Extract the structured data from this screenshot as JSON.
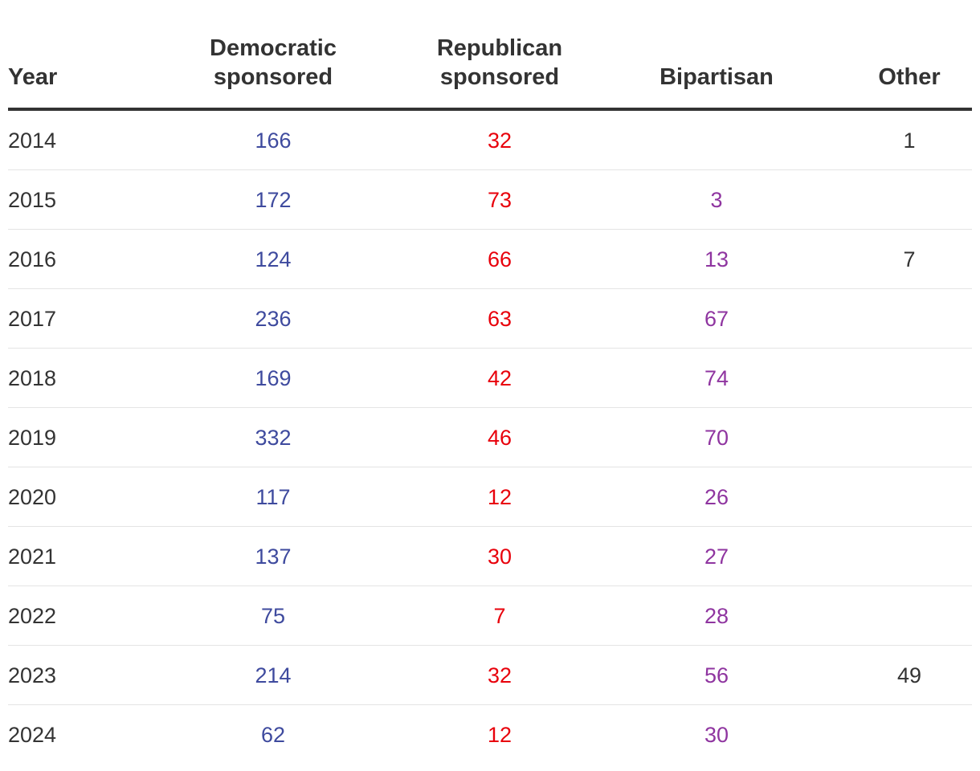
{
  "chart_data": {
    "type": "table",
    "columns": [
      "Year",
      "Democratic\nsponsored",
      "Republican\nsponsored",
      "Bipartisan",
      "Other"
    ],
    "column_colors": {
      "year": "#333333",
      "democratic": "#3e4a9e",
      "republican": "#e8000b",
      "bipartisan": "#8f35a0",
      "other": "#333333"
    },
    "rows": [
      {
        "year": "2014",
        "democratic": "166",
        "republican": "32",
        "bipartisan": "",
        "other": "1"
      },
      {
        "year": "2015",
        "democratic": "172",
        "republican": "73",
        "bipartisan": "3",
        "other": ""
      },
      {
        "year": "2016",
        "democratic": "124",
        "republican": "66",
        "bipartisan": "13",
        "other": "7"
      },
      {
        "year": "2017",
        "democratic": "236",
        "republican": "63",
        "bipartisan": "67",
        "other": ""
      },
      {
        "year": "2018",
        "democratic": "169",
        "republican": "42",
        "bipartisan": "74",
        "other": ""
      },
      {
        "year": "2019",
        "democratic": "332",
        "republican": "46",
        "bipartisan": "70",
        "other": ""
      },
      {
        "year": "2020",
        "democratic": "117",
        "republican": "12",
        "bipartisan": "26",
        "other": ""
      },
      {
        "year": "2021",
        "democratic": "137",
        "republican": "30",
        "bipartisan": "27",
        "other": ""
      },
      {
        "year": "2022",
        "democratic": "75",
        "republican": "7",
        "bipartisan": "28",
        "other": ""
      },
      {
        "year": "2023",
        "democratic": "214",
        "republican": "32",
        "bipartisan": "56",
        "other": "49"
      },
      {
        "year": "2024",
        "democratic": "62",
        "republican": "12",
        "bipartisan": "30",
        "other": ""
      }
    ]
  }
}
